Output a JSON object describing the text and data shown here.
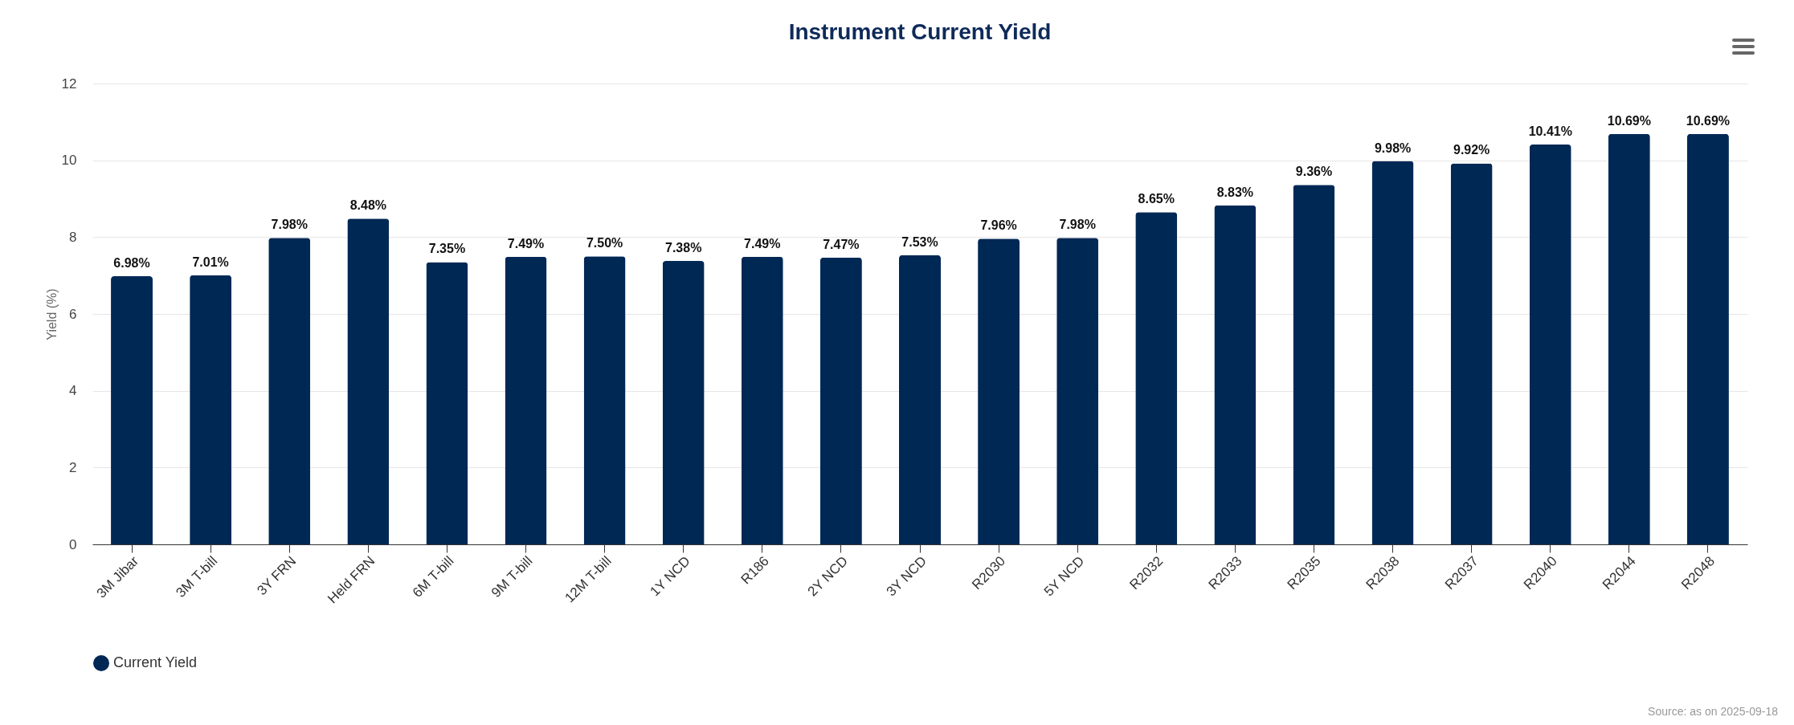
{
  "chart_data": {
    "type": "bar",
    "title": "Instrument Current Yield",
    "ylabel": "Yield (%)",
    "categories": [
      "3M Jibar",
      "3M T-bill",
      "3Y FRN",
      "Held FRN",
      "6M T-bill",
      "9M T-bill",
      "12M T-bill",
      "1Y NCD",
      "R186",
      "2Y NCD",
      "3Y NCD",
      "R2030",
      "5Y NCD",
      "R2032",
      "R2033",
      "R2035",
      "R2038",
      "R2037",
      "R2040",
      "R2044",
      "R2048"
    ],
    "series": [
      {
        "name": "Current Yield",
        "color": "#002855",
        "values": [
          6.98,
          7.01,
          7.98,
          8.48,
          7.35,
          7.49,
          7.5,
          7.38,
          7.49,
          7.47,
          7.53,
          7.96,
          7.98,
          8.65,
          8.83,
          9.36,
          9.98,
          9.92,
          10.41,
          10.69,
          10.69
        ],
        "value_labels": [
          "6.98%",
          "7.01%",
          "7.98%",
          "8.48%",
          "7.35%",
          "7.49%",
          "7.50%",
          "7.38%",
          "7.49%",
          "7.47%",
          "7.53%",
          "7.96%",
          "7.98%",
          "8.65%",
          "8.83%",
          "9.36%",
          "9.98%",
          "9.92%",
          "10.41%",
          "10.69%",
          "10.69%"
        ]
      }
    ],
    "ylim": [
      0,
      12
    ],
    "yticks": [
      0,
      2,
      4,
      6,
      8,
      10,
      12
    ],
    "grid": "y",
    "legend": "bottom",
    "annotations": [
      "Source: as on 2025-09-18"
    ]
  }
}
